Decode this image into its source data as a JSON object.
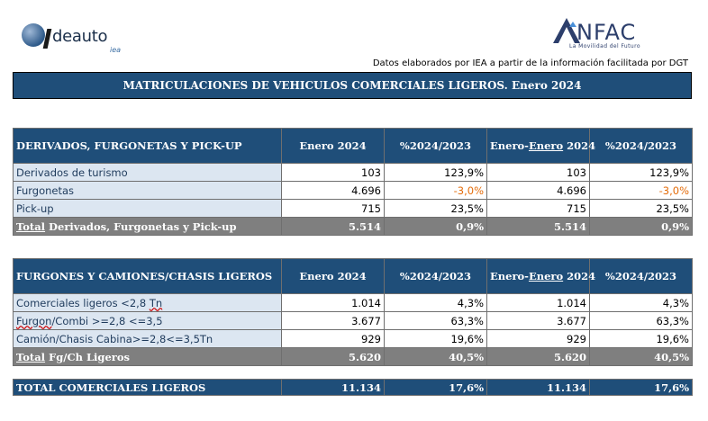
{
  "logos": {
    "left_word": "deauto",
    "left_sub": "iea",
    "right_word": "NFAC",
    "right_tag": "La Movilidad del Futuro"
  },
  "source": "Datos elaborados por IEA a partir de la información facilitada por DGT",
  "title": "MATRICULACIONES DE VEHICULOS COMERCIALES LIGEROS. Enero 2024",
  "table1": {
    "header": [
      "DERIVADOS, FURGONETAS Y PICK-UP",
      "Enero 2024",
      "%2024/2023",
      "Enero-Enero 2024",
      "%2024/2023"
    ],
    "header_prefix": "Enero-",
    "header_underlined": "Enero",
    "header_suffix": " 2024",
    "rows": [
      [
        "Derivados de turismo",
        "103",
        "123,9%",
        "103",
        "123,9%"
      ],
      [
        "Furgonetas",
        "4.696",
        "-3,0%",
        "4.696",
        "-3,0%"
      ],
      [
        "Pick-up",
        "715",
        "23,5%",
        "715",
        "23,5%"
      ]
    ],
    "total_prefix": "Total",
    "total_label": " Derivados, Furgonetas y Pick-up",
    "total": [
      "5.514",
      "0,9%",
      "5.514",
      "0,9%"
    ]
  },
  "table2": {
    "header": [
      "FURGONES Y CAMIONES/CHASIS LIGEROS",
      "Enero 2024",
      "%2024/2023",
      "Enero-Enero 2024",
      "%2024/2023"
    ],
    "header_prefix": "Enero-",
    "header_underlined": "Enero",
    "header_suffix": " 2024",
    "rows": [
      [
        "Comerciales ligeros <2,8 Tn",
        "1.014",
        "4,3%",
        "1.014",
        "4,3%"
      ],
      [
        "Furgon/Combi >=2,8 <=3,5",
        "3.677",
        "63,3%",
        "3.677",
        "63,3%"
      ],
      [
        "Camión/Chasis Cabina>=2,8<=3,5Tn",
        "929",
        "19,6%",
        "929",
        "19,6%"
      ]
    ],
    "row0_main": "Comerciales ligeros <2,8 ",
    "row0_wavy": "Tn",
    "row1_wavy": "Furgon",
    "row1_rest": "/Combi >=2,8 <=3,5",
    "total_prefix": "Total",
    "total_label": " Fg/Ch Ligeros",
    "total": [
      "5.620",
      "40,5%",
      "5.620",
      "40,5%"
    ]
  },
  "grand_total": {
    "label": "TOTAL COMERCIALES LIGEROS",
    "values": [
      "11.134",
      "17,6%",
      "11.134",
      "17,6%"
    ]
  },
  "colors": {
    "header_bg": "#1f4e79",
    "label_bg": "#dce6f1",
    "total_bg": "#7f7f7f",
    "negative": "#e46c0a"
  }
}
